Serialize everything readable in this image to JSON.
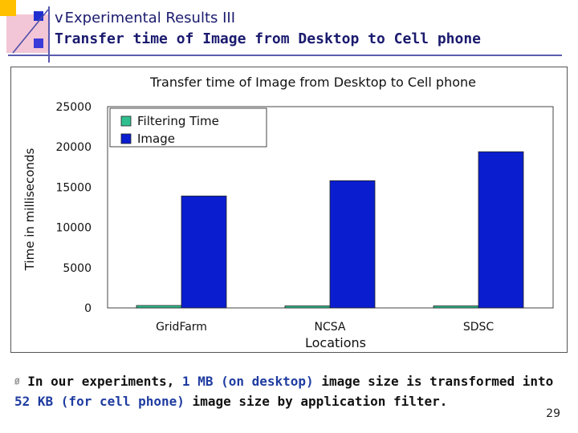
{
  "slide": {
    "heading_bullet": "v",
    "heading": "Experimental Results III",
    "subheading": "Transfer time of Image from Desktop to Cell phone",
    "page_number": "29"
  },
  "body": {
    "bullet": "Ø",
    "part1": "In our experiments, ",
    "part2": "1 MB (on desktop)",
    "part3": " image size is transformed into ",
    "part4": "52 KB (for cell phone)",
    "part5": " image size by application filter."
  },
  "chart_data": {
    "type": "bar",
    "title": "Transfer time of Image from Desktop to Cell phone",
    "xlabel": "Locations",
    "ylabel": "Time in milliseconds",
    "ylim": [
      0,
      25000
    ],
    "yticks": [
      0,
      5000,
      10000,
      15000,
      20000,
      25000
    ],
    "categories": [
      "GridFarm",
      "NCSA",
      "SDSC"
    ],
    "series": [
      {
        "name": "Filtering Time",
        "values": [
          300,
          250,
          250
        ],
        "color": "#2fbf8f"
      },
      {
        "name": "Image",
        "values": [
          13900,
          15800,
          19400
        ],
        "color": "#0a1ecf"
      }
    ],
    "legend_position": "top-left",
    "grid": false
  }
}
